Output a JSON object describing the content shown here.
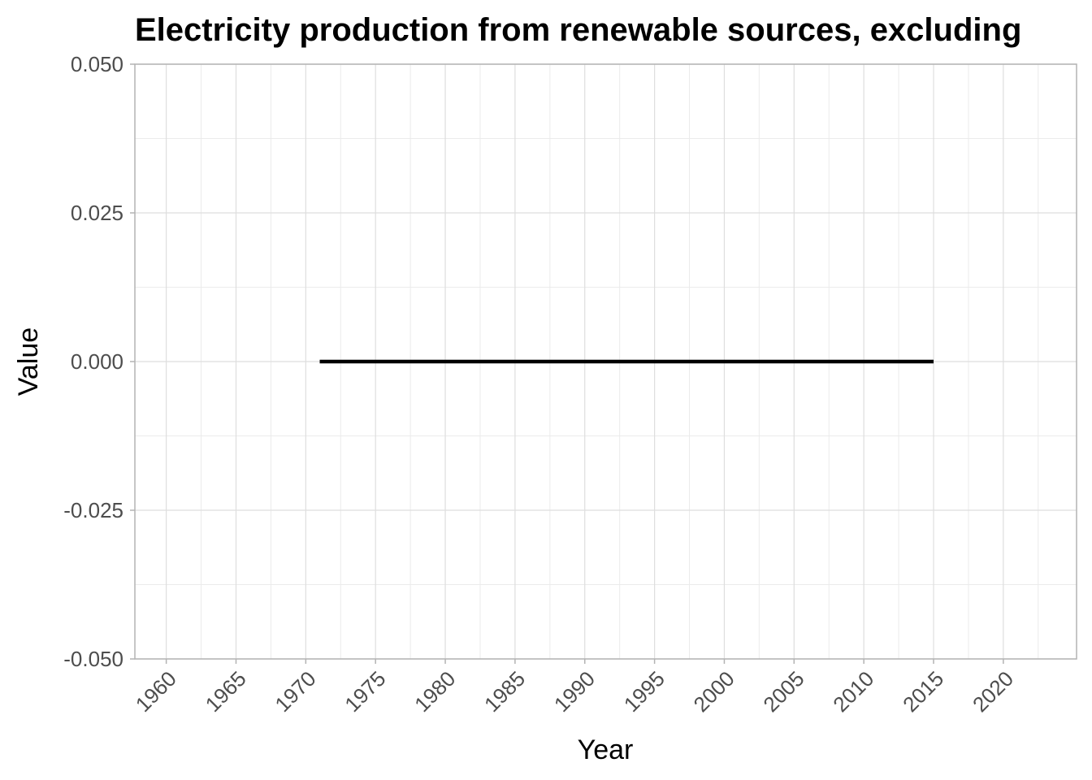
{
  "chart_data": {
    "type": "line",
    "title": "Electricity production from renewable sources, excluding",
    "xlabel": "Year",
    "ylabel": "Value",
    "xlim": [
      1957.75,
      2025.25
    ],
    "ylim": [
      -0.05,
      0.05
    ],
    "x_ticks": [
      1960,
      1965,
      1970,
      1975,
      1980,
      1985,
      1990,
      1995,
      2000,
      2005,
      2010,
      2015,
      2020
    ],
    "y_ticks": [
      -0.05,
      -0.025,
      0,
      0.025,
      0.05
    ],
    "y_tick_labels": [
      "-0.050",
      "-0.025",
      "0.000",
      "0.025",
      "0.050"
    ],
    "grid": true,
    "series": [
      {
        "x": [
          1971,
          1972,
          1973,
          1974,
          1975,
          1976,
          1977,
          1978,
          1979,
          1980,
          1981,
          1982,
          1983,
          1984,
          1985,
          1986,
          1987,
          1988,
          1989,
          1990,
          1991,
          1992,
          1993,
          1994,
          1995,
          1996,
          1997,
          1998,
          1999,
          2000,
          2001,
          2002,
          2003,
          2004,
          2005,
          2006,
          2007,
          2008,
          2009,
          2010,
          2011,
          2012,
          2013,
          2014,
          2015
        ],
        "values": [
          0,
          0,
          0,
          0,
          0,
          0,
          0,
          0,
          0,
          0,
          0,
          0,
          0,
          0,
          0,
          0,
          0,
          0,
          0,
          0,
          0,
          0,
          0,
          0,
          0,
          0,
          0,
          0,
          0,
          0,
          0,
          0,
          0,
          0,
          0,
          0,
          0,
          0,
          0,
          0,
          0,
          0,
          0,
          0,
          0
        ],
        "color": "#000000"
      }
    ]
  }
}
